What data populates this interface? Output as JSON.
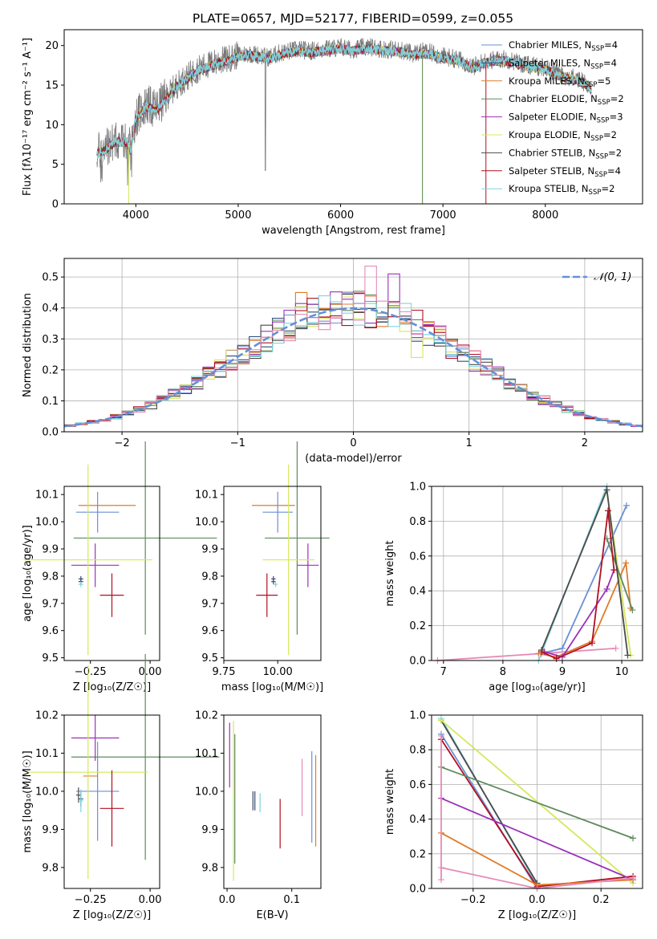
{
  "title": "PLATE=0657, MJD=52177, FIBERID=0599, z=0.055",
  "colors": {
    "Chabrier MILES": "#6a8fd6",
    "Salpeter MILES": "#2e4b7a",
    "Kroupa MILES": "#e07b28",
    "Chabrier ELODIE": "#5f8a5f",
    "Salpeter ELODIE": "#9b30b8",
    "Kroupa ELODIE": "#d4e85a",
    "Chabrier STELIB": "#4a4a4a",
    "Salpeter STELIB": "#b01020",
    "Kroupa STELIB": "#7fd4e0",
    "data": "#777777",
    "normal": "#6490d8",
    "pink": "#e58ab8"
  },
  "chart_data": [
    {
      "id": "spectrum",
      "type": "line",
      "title": "PLATE=0657, MJD=52177, FIBERID=0599, z=0.055",
      "xlabel": "wavelength [Angstrom, rest frame]",
      "ylabel": "Flux [fλ10⁻¹⁷ erg cm⁻² s⁻¹ A⁻¹]",
      "xlim": [
        3300,
        8950
      ],
      "ylim": [
        0,
        22
      ],
      "xticks": [
        4000,
        5000,
        6000,
        7000,
        8000
      ],
      "yticks": [
        0,
        5,
        10,
        15,
        20
      ],
      "legend_position": "top-right",
      "envelope": {
        "x": [
          3620,
          3700,
          3800,
          3900,
          3950,
          4000,
          4100,
          4200,
          4300,
          4400,
          4500,
          4600,
          4700,
          4800,
          4900,
          5000,
          5100,
          5200,
          5300,
          5400,
          5500,
          5600,
          5700,
          5800,
          5900,
          6000,
          6100,
          6200,
          6300,
          6400,
          6500,
          6600,
          6700,
          6800,
          6900,
          7000,
          7100,
          7200,
          7300,
          7400,
          7500,
          7600,
          7700,
          7800,
          7900,
          8000,
          8100,
          8200,
          8300,
          8400,
          8450
        ],
        "y": [
          6.5,
          7,
          8,
          8,
          7,
          11,
          12.5,
          12,
          13.5,
          15,
          16,
          17,
          17.5,
          18,
          18.3,
          18.8,
          19,
          18.8,
          18.5,
          19,
          19.3,
          19.5,
          19.3,
          19.5,
          19.6,
          19.8,
          19.5,
          19.7,
          19.8,
          19.6,
          19.5,
          19.4,
          19,
          19.2,
          19,
          18.6,
          18.4,
          18,
          17.3,
          18,
          18.2,
          18.3,
          18,
          17.6,
          17.4,
          17.2,
          16.6,
          16.1,
          15.8,
          15.3,
          14.5
        ]
      },
      "series": [
        {
          "name": "Chabrier MILES, N_SSP=4"
        },
        {
          "name": "Salpeter MILES, N_SSP=4"
        },
        {
          "name": "Kroupa MILES, N_SSP=5"
        },
        {
          "name": "Chabrier ELODIE, N_SSP=2"
        },
        {
          "name": "Salpeter ELODIE, N_SSP=3"
        },
        {
          "name": "Kroupa ELODIE, N_SSP=2"
        },
        {
          "name": "Chabrier STELIB, N_SSP=2"
        },
        {
          "name": "Salpeter STELIB, N_SSP=4"
        },
        {
          "name": "Kroupa STELIB, N_SSP=2"
        }
      ]
    },
    {
      "id": "residuals",
      "type": "step",
      "xlabel": "(data-model)/error",
      "ylabel": "Normed distribution",
      "xlim": [
        -2.5,
        2.5
      ],
      "ylim": [
        0,
        0.56
      ],
      "xticks": [
        -2,
        -1,
        0,
        1,
        2
      ],
      "yticks": [
        0.0,
        0.1,
        0.2,
        0.3,
        0.4,
        0.5
      ],
      "legend": "𝒩(0, 1)",
      "legend_position": "top-right",
      "bin_width": 0.1,
      "grid": true
    },
    {
      "id": "Z-age",
      "type": "errorbar",
      "xlabel": "Z [log₁₀(Z/Z☉)]",
      "ylabel": "age  [log₁₀(age/yr)]",
      "xlim": [
        -0.36,
        0.04
      ],
      "ylim": [
        9.49,
        10.13
      ],
      "xticks": [
        -0.25,
        0.0
      ],
      "xticklabels": [
        "−0.25",
        "0.00"
      ],
      "yticks": [
        9.5,
        9.6,
        9.7,
        9.8,
        9.9,
        10.0,
        10.1
      ],
      "points": [
        {
          "c": "Chabrier MILES",
          "x": -0.22,
          "xe": 0.09,
          "y": 10.035,
          "ye": 0.075
        },
        {
          "c": "Salpeter MILES",
          "x": -0.29,
          "xe": 0.01,
          "y": 9.79,
          "ye": 0.01
        },
        {
          "c": "Kroupa MILES",
          "x": -0.18,
          "xe": 0.12,
          "y": 10.06,
          "ye": 0.0
        },
        {
          "c": "Chabrier ELODIE",
          "x": -0.02,
          "xe": 0.3,
          "y": 9.94,
          "ye": 0.355
        },
        {
          "c": "Salpeter ELODIE",
          "x": -0.23,
          "xe": 0.1,
          "y": 9.84,
          "ye": 0.08
        },
        {
          "c": "Kroupa ELODIE",
          "x": -0.26,
          "xe": 0.27,
          "y": 9.86,
          "ye": 0.35
        },
        {
          "c": "Chabrier STELIB",
          "x": -0.29,
          "xe": 0.01,
          "y": 9.78,
          "ye": 0.01
        },
        {
          "c": "Salpeter STELIB",
          "x": -0.16,
          "xe": 0.05,
          "y": 9.73,
          "ye": 0.08
        },
        {
          "c": "Kroupa STELIB",
          "x": -0.29,
          "xe": 0.01,
          "y": 9.77,
          "ye": 0.01
        }
      ]
    },
    {
      "id": "mass-age",
      "type": "errorbar",
      "xlabel": "mass [log₁₀(M/M☉)]",
      "ylabel": "",
      "xlim": [
        9.75,
        10.2
      ],
      "ylim": [
        9.49,
        10.13
      ],
      "xticks": [
        9.75,
        10.0
      ],
      "xticklabels": [
        "9.75",
        "10.00"
      ],
      "yticks": [
        9.5,
        9.6,
        9.7,
        9.8,
        9.9,
        10.0,
        10.1
      ],
      "points": [
        {
          "c": "Chabrier MILES",
          "x": 10.0,
          "xe": 0.07,
          "y": 10.035,
          "ye": 0.075
        },
        {
          "c": "Salpeter MILES",
          "x": 9.98,
          "xe": 0.01,
          "y": 9.79,
          "ye": 0.01
        },
        {
          "c": "Kroupa MILES",
          "x": 9.98,
          "xe": 0.1,
          "y": 10.06,
          "ye": 0.0
        },
        {
          "c": "Chabrier ELODIE",
          "x": 10.09,
          "xe": 0.15,
          "y": 9.94,
          "ye": 0.355
        },
        {
          "c": "Salpeter ELODIE",
          "x": 10.14,
          "xe": 0.05,
          "y": 9.84,
          "ye": 0.08
        },
        {
          "c": "Kroupa ELODIE",
          "x": 10.05,
          "xe": 0.12,
          "y": 9.86,
          "ye": 0.35
        },
        {
          "c": "Chabrier STELIB",
          "x": 9.98,
          "xe": 0.01,
          "y": 9.78,
          "ye": 0.01
        },
        {
          "c": "Salpeter STELIB",
          "x": 9.95,
          "xe": 0.05,
          "y": 9.73,
          "ye": 0.08
        },
        {
          "c": "Kroupa STELIB",
          "x": 9.99,
          "xe": 0.01,
          "y": 9.77,
          "ye": 0.01
        }
      ]
    },
    {
      "id": "age-weight",
      "type": "line",
      "xlabel": "age  [log₁₀(age/yr)]",
      "ylabel": "mass weight",
      "xlim": [
        6.8,
        10.35
      ],
      "ylim": [
        0.0,
        1.0
      ],
      "xticks": [
        7,
        8,
        9,
        10
      ],
      "yticks": [
        0.0,
        0.2,
        0.4,
        0.6,
        0.8,
        1.0
      ],
      "grid": true,
      "series": [
        {
          "c": "Kroupa STELIB",
          "x": [
            8.6,
            9.75
          ],
          "y": [
            0.0,
            1.0
          ]
        },
        {
          "c": "Chabrier MILES",
          "x": [
            8.65,
            9.0,
            10.08
          ],
          "y": [
            0.04,
            0.07,
            0.89
          ]
        },
        {
          "c": "pink",
          "x": [
            6.9,
            8.65,
            9.9
          ],
          "y": [
            0.0,
            0.04,
            0.07
          ]
        },
        {
          "c": "Kroupa MILES",
          "x": [
            8.6,
            8.9,
            9.5,
            10.07,
            10.15
          ],
          "y": [
            0.04,
            0.02,
            0.11,
            0.56,
            0.3
          ]
        },
        {
          "c": "Salpeter ELODIE",
          "x": [
            8.7,
            9.0,
            9.75,
            9.87
          ],
          "y": [
            0.05,
            0.02,
            0.41,
            0.52
          ]
        },
        {
          "c": "Kroupa ELODIE",
          "x": [
            9.75,
            10.15
          ],
          "y": [
            0.97,
            0.03
          ]
        },
        {
          "c": "Chabrier ELODIE",
          "x": [
            9.75,
            10.18
          ],
          "y": [
            0.7,
            0.29
          ]
        },
        {
          "c": "Chabrier STELIB",
          "x": [
            8.65,
            9.75,
            10.1
          ],
          "y": [
            0.06,
            0.98,
            0.03
          ]
        },
        {
          "c": "Salpeter STELIB",
          "x": [
            8.65,
            8.9,
            9.5,
            9.77,
            9.87
          ],
          "y": [
            0.05,
            0.01,
            0.1,
            0.86,
            0.52
          ]
        }
      ]
    },
    {
      "id": "Z-mass",
      "type": "errorbar",
      "xlabel": "Z [log₁₀(Z/Z☉)]",
      "ylabel": "mass [log₁₀(M/M☉)]",
      "xlim": [
        -0.36,
        0.04
      ],
      "ylim": [
        9.745,
        10.2
      ],
      "xticks": [
        -0.25,
        0.0
      ],
      "xticklabels": [
        "−0.25",
        "0.00"
      ],
      "yticks": [
        9.8,
        9.9,
        10.0,
        10.1,
        10.2
      ],
      "points": [
        {
          "c": "Chabrier MILES",
          "x": -0.22,
          "xe": 0.09,
          "y": 10.0,
          "ye": 0.13
        },
        {
          "c": "Salpeter MILES",
          "x": -0.29,
          "xe": 0.01,
          "y": 9.98,
          "ye": 0.02
        },
        {
          "c": "Kroupa MILES",
          "x": -0.25,
          "xe": 0.03,
          "y": 10.04,
          "ye": 0.0
        },
        {
          "c": "Chabrier ELODIE",
          "x": -0.02,
          "xe": 0.31,
          "y": 10.09,
          "ye": 0.27
        },
        {
          "c": "Salpeter ELODIE",
          "x": -0.23,
          "xe": 0.1,
          "y": 10.14,
          "ye": 0.06
        },
        {
          "c": "Kroupa ELODIE",
          "x": -0.26,
          "xe": 0.25,
          "y": 10.05,
          "ye": 0.28
        },
        {
          "c": "Chabrier STELIB",
          "x": -0.3,
          "xe": 0.01,
          "y": 9.99,
          "ye": 0.02
        },
        {
          "c": "Salpeter STELIB",
          "x": -0.16,
          "xe": 0.05,
          "y": 9.955,
          "ye": 0.1
        },
        {
          "c": "Kroupa STELIB",
          "x": -0.29,
          "xe": 0.01,
          "y": 9.975,
          "ye": 0.03
        }
      ]
    },
    {
      "id": "EBV-mass",
      "type": "errorbar",
      "xlabel": "E(B-V)",
      "ylabel": "",
      "xlim": [
        -0.005,
        0.145
      ],
      "ylim": [
        9.745,
        10.2
      ],
      "xticks": [
        0.0,
        0.1
      ],
      "xticklabels": [
        "0.0",
        "0.1"
      ],
      "yticks": [
        9.8,
        9.9,
        10.0,
        10.1,
        10.2
      ],
      "points": [
        {
          "c": "Chabrier MILES",
          "x": 0.131,
          "xe": 0,
          "y": 9.985,
          "ye": 0.12
        },
        {
          "c": "Salpeter MILES",
          "x": 0.043,
          "xe": 0,
          "y": 9.975,
          "ye": 0.025
        },
        {
          "c": "Kroupa MILES",
          "x": 0.137,
          "xe": 0,
          "y": 9.975,
          "ye": 0.12
        },
        {
          "c": "Chabrier ELODIE",
          "x": 0.012,
          "xe": 0,
          "y": 9.98,
          "ye": 0.17
        },
        {
          "c": "Salpeter ELODIE",
          "x": 0.004,
          "xe": 0,
          "y": 10.095,
          "ye": 0.085
        },
        {
          "c": "Kroupa ELODIE",
          "x": 0.01,
          "xe": 0,
          "y": 9.975,
          "ye": 0.21
        },
        {
          "c": "Chabrier STELIB",
          "x": 0.04,
          "xe": 0,
          "y": 9.975,
          "ye": 0.025
        },
        {
          "c": "Salpeter STELIB",
          "x": 0.082,
          "xe": 0,
          "y": 9.915,
          "ye": 0.065
        },
        {
          "c": "Kroupa STELIB",
          "x": 0.051,
          "xe": 0,
          "y": 9.97,
          "ye": 0.025
        },
        {
          "c": "pink",
          "x": 0.116,
          "xe": 0,
          "y": 10.01,
          "ye": 0.075
        }
      ]
    },
    {
      "id": "Z-weight",
      "type": "line",
      "xlabel": "Z [log₁₀(Z/Z☉)]",
      "ylabel": "mass weight",
      "xlim": [
        -0.33,
        0.33
      ],
      "ylim": [
        0.0,
        1.0
      ],
      "xticks": [
        -0.2,
        0.0,
        0.2
      ],
      "xticklabels": [
        "−0.2",
        "0.0",
        "0.2"
      ],
      "yticks": [
        0.0,
        0.2,
        0.4,
        0.6,
        0.8,
        1.0
      ],
      "grid": true,
      "series": [
        {
          "c": "Kroupa STELIB",
          "x": [
            -0.3,
            0.0
          ],
          "y": [
            0.98,
            0.02
          ]
        },
        {
          "c": "Chabrier MILES",
          "x": [
            -0.3,
            0.0
          ],
          "y": [
            0.89,
            0.0
          ]
        },
        {
          "c": "Chabrier STELIB",
          "x": [
            -0.3,
            0.0
          ],
          "y": [
            0.97,
            0.03
          ]
        },
        {
          "c": "Salpeter STELIB",
          "x": [
            -0.3,
            0.0,
            0.3
          ],
          "y": [
            0.86,
            0.01,
            0.07
          ]
        },
        {
          "c": "Kroupa ELODIE",
          "x": [
            -0.3,
            0.3
          ],
          "y": [
            0.97,
            0.03
          ]
        },
        {
          "c": "Chabrier ELODIE",
          "x": [
            -0.3,
            0.3
          ],
          "y": [
            0.7,
            0.29
          ]
        },
        {
          "c": "Salpeter ELODIE",
          "x": [
            -0.3,
            0.3
          ],
          "y": [
            0.52,
            0.05
          ]
        },
        {
          "c": "Kroupa MILES",
          "x": [
            -0.3,
            0.0,
            0.3
          ],
          "y": [
            0.32,
            0.02,
            0.05
          ]
        },
        {
          "c": "pink",
          "x": [
            -0.3,
            0.0,
            0.3
          ],
          "y": [
            0.12,
            0.0,
            0.06
          ]
        },
        {
          "c": "pink",
          "x": [
            -0.3,
            -0.3
          ],
          "y": [
            0.05,
            0.88
          ]
        }
      ]
    }
  ]
}
